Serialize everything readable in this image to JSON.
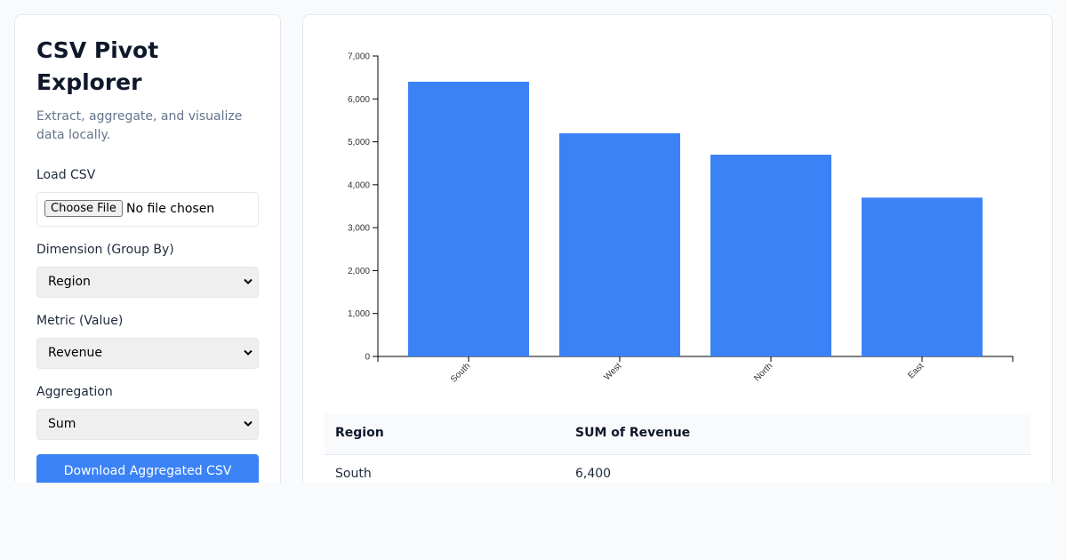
{
  "sidebar": {
    "title": "CSV Pivot Explorer",
    "subtitle": "Extract, aggregate, and visualize data locally.",
    "load_label": "Load CSV",
    "file_button": "Choose File",
    "file_status": "No file chosen",
    "dimension_label": "Dimension (Group By)",
    "dimension_value": "Region",
    "metric_label": "Metric (Value)",
    "metric_value": "Revenue",
    "aggregation_label": "Aggregation",
    "aggregation_value": "Sum",
    "download_button": "Download Aggregated CSV"
  },
  "chart_data": {
    "type": "bar",
    "categories": [
      "South",
      "West",
      "North",
      "East"
    ],
    "values": [
      6400,
      5200,
      4700,
      3700
    ],
    "color": "#3b82f6",
    "ylim": [
      0,
      7000
    ],
    "yticks": [
      0,
      {
        "value": 1000,
        "label": "1,000"
      },
      {
        "value": 2000,
        "label": "2,000"
      },
      {
        "value": 3000,
        "label": "3,000"
      },
      {
        "value": 4000,
        "label": "4,000"
      },
      {
        "value": 5000,
        "label": "5,000"
      },
      {
        "value": 6000,
        "label": "6,000"
      },
      {
        "value": 7000,
        "label": "7,000"
      }
    ]
  },
  "table": {
    "headers": [
      "Region",
      "SUM of Revenue"
    ],
    "rows": [
      [
        "South",
        "6,400"
      ]
    ]
  }
}
